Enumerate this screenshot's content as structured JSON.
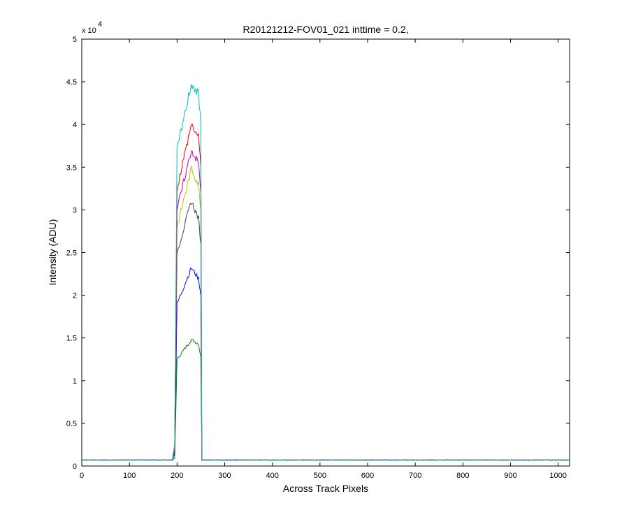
{
  "chart_data": {
    "type": "line",
    "title": "R20121212-FOV01_021 inttime = 0.2,",
    "xlabel": "Across Track Pixels",
    "ylabel": "Intensity (ADU)",
    "y_multiplier_label": "x 10",
    "y_multiplier_exponent": "4",
    "xlim": [
      0,
      1024
    ],
    "ylim": [
      0,
      50000
    ],
    "x_ticks": [
      0,
      100,
      200,
      300,
      400,
      500,
      600,
      700,
      800,
      900,
      1000
    ],
    "x_tick_labels": [
      "0",
      "100",
      "200",
      "300",
      "400",
      "500",
      "600",
      "700",
      "800",
      "900",
      "1000"
    ],
    "y_ticks": [
      0,
      5000,
      10000,
      15000,
      20000,
      25000,
      30000,
      35000,
      40000,
      45000,
      50000
    ],
    "y_tick_labels": [
      "0",
      "0.5",
      "1",
      "1.5",
      "2",
      "2.5",
      "3",
      "3.5",
      "4",
      "4.5",
      "5"
    ],
    "grid": false,
    "legend": "none",
    "series": [
      {
        "color": "#008000",
        "x": [
          0,
          190,
          195,
          200,
          230,
          245,
          250,
          252,
          1024
        ],
        "y": [
          700,
          700,
          900,
          12500,
          14800,
          14300,
          12800,
          700,
          700
        ]
      },
      {
        "color": "#0000ff",
        "x": [
          0,
          190,
          195,
          200,
          230,
          245,
          250,
          252,
          1024
        ],
        "y": [
          700,
          700,
          1500,
          19000,
          23200,
          22000,
          20000,
          700,
          700
        ]
      },
      {
        "color": "#404040",
        "x": [
          0,
          190,
          195,
          200,
          230,
          245,
          250,
          252,
          1024
        ],
        "y": [
          700,
          700,
          1800,
          25000,
          31000,
          29000,
          26000,
          700,
          700
        ]
      },
      {
        "color": "#bfbf00",
        "x": [
          0,
          190,
          195,
          200,
          230,
          245,
          250,
          252,
          1024
        ],
        "y": [
          700,
          700,
          2000,
          28000,
          34800,
          33000,
          30000,
          700,
          700
        ]
      },
      {
        "color": "#bf00bf",
        "x": [
          0,
          190,
          195,
          200,
          230,
          245,
          250,
          252,
          1024
        ],
        "y": [
          700,
          700,
          2100,
          30000,
          37000,
          35500,
          32000,
          700,
          700
        ]
      },
      {
        "color": "#ff0000",
        "x": [
          0,
          190,
          195,
          200,
          230,
          245,
          250,
          252,
          1024
        ],
        "y": [
          700,
          700,
          2300,
          32500,
          40000,
          38500,
          35000,
          700,
          700
        ]
      },
      {
        "color": "#00bfbf",
        "x": [
          0,
          190,
          195,
          200,
          230,
          245,
          250,
          252,
          1024
        ],
        "y": [
          700,
          700,
          2500,
          37000,
          44800,
          43500,
          40000,
          700,
          700
        ]
      }
    ]
  }
}
